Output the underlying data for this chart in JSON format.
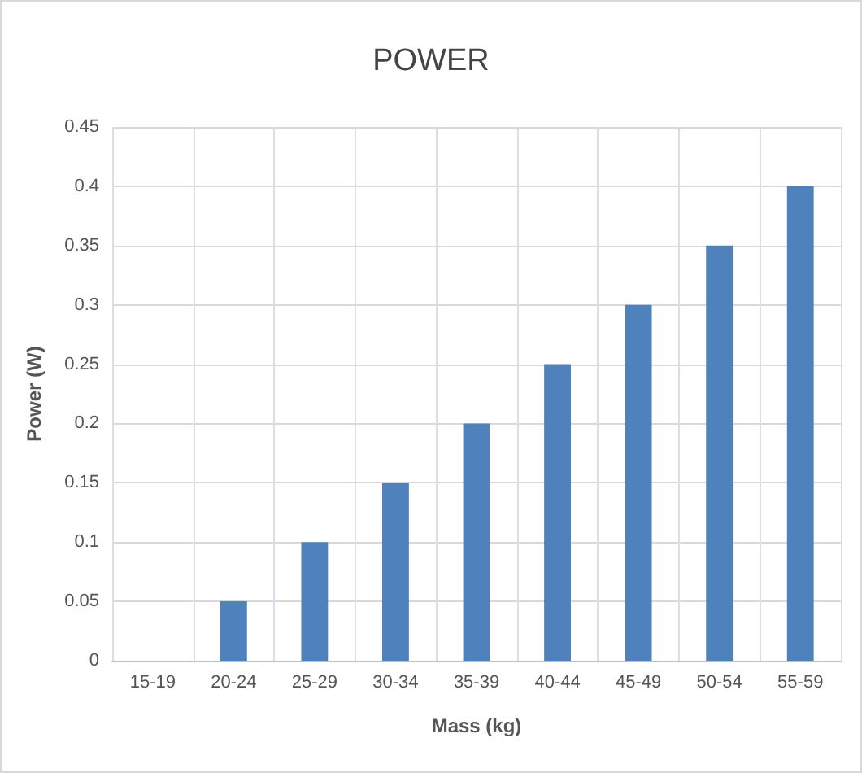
{
  "chart_data": {
    "type": "bar",
    "title": "POWER",
    "xlabel": "Mass (kg)",
    "ylabel": "Power (W)",
    "categories": [
      "15-19",
      "20-24",
      "25-29",
      "30-34",
      "35-39",
      "40-44",
      "45-49",
      "50-54",
      "55-59"
    ],
    "values": [
      0,
      0.05,
      0.1,
      0.15,
      0.2,
      0.25,
      0.3,
      0.35,
      0.4
    ],
    "color": "#4f81bd",
    "ylim": [
      0,
      0.45
    ],
    "yticks": [
      0,
      0.05,
      0.1,
      0.15,
      0.2,
      0.25,
      0.3,
      0.35,
      0.4,
      0.45
    ],
    "grid": true
  }
}
